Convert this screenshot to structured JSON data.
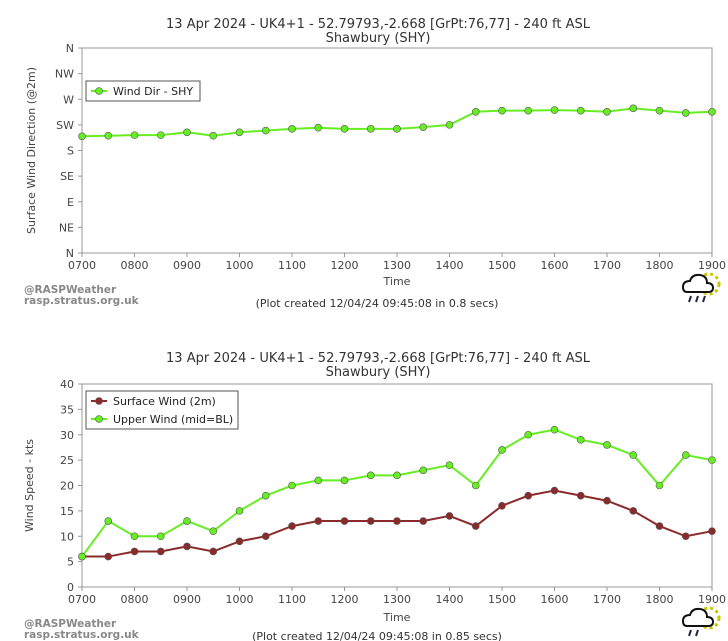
{
  "charts": [
    {
      "title_line1": "13 Apr 2024 - UK4+1 - 52.79793,-2.668 [GrPt:76,77]  - 240 ft ASL",
      "title_line2": "Shawbury (SHY)",
      "credit_line1": "@RASPWeather",
      "credit_line2": "rasp.stratus.org.uk",
      "created": "(Plot created 12/04/24 09:45:08 in 0.8 secs)",
      "icon": "rain-cloud-sun-logo-icon"
    },
    {
      "title_line1": "13 Apr 2024 - UK4+1 - 52.79793,-2.668 [GrPt:76,77]  - 240 ft ASL",
      "title_line2": "Shawbury (SHY)",
      "credit_line1": "@RASPWeather",
      "credit_line2": "rasp.stratus.org.uk",
      "created": "(Plot created 12/04/24 09:45:08 in 0.85 secs)",
      "icon": "rain-cloud-sun-logo-icon"
    }
  ],
  "chart_data": [
    {
      "type": "line",
      "xlabel": "Time",
      "ylabel": "Surface Wind Direction (@2m)",
      "x": [
        "0700",
        "0730",
        "0800",
        "0830",
        "0900",
        "0930",
        "1000",
        "1030",
        "1100",
        "1130",
        "1200",
        "1230",
        "1300",
        "1330",
        "1400",
        "1430",
        "1500",
        "1530",
        "1600",
        "1630",
        "1700",
        "1730",
        "1800",
        "1830",
        "1900"
      ],
      "x_ticks": [
        "0700",
        "0800",
        "0900",
        "1000",
        "1100",
        "1200",
        "1300",
        "1400",
        "1500",
        "1600",
        "1700",
        "1800",
        "1900"
      ],
      "y_ticks": [
        "N",
        "NE",
        "E",
        "SE",
        "S",
        "SW",
        "W",
        "NW",
        "N"
      ],
      "ylim": [
        0,
        360
      ],
      "grid": false,
      "legend_placement": "top-left",
      "series": [
        {
          "name": "Wind Dir - SHY",
          "color": "#66ee22",
          "values": [
            205,
            206,
            207,
            207,
            212,
            206,
            212,
            215,
            218,
            220,
            218,
            218,
            218,
            221,
            225,
            248,
            250,
            250,
            251,
            250,
            248,
            254,
            250,
            246,
            248
          ]
        }
      ]
    },
    {
      "type": "line",
      "xlabel": "Time",
      "ylabel": "Wind Speed - kts",
      "x": [
        "0700",
        "0730",
        "0800",
        "0830",
        "0900",
        "0930",
        "1000",
        "1030",
        "1100",
        "1130",
        "1200",
        "1230",
        "1300",
        "1330",
        "1400",
        "1430",
        "1500",
        "1530",
        "1600",
        "1630",
        "1700",
        "1730",
        "1800",
        "1830",
        "1900"
      ],
      "x_ticks": [
        "0700",
        "0800",
        "0900",
        "1000",
        "1100",
        "1200",
        "1300",
        "1400",
        "1500",
        "1600",
        "1700",
        "1800",
        "1900"
      ],
      "y_ticks": [
        "0",
        "5",
        "10",
        "15",
        "20",
        "25",
        "30",
        "35",
        "40"
      ],
      "ylim": [
        0,
        40
      ],
      "grid": false,
      "legend_placement": "top-left",
      "series": [
        {
          "name": "Surface Wind (2m)",
          "color": "#8b2a2a",
          "values": [
            6,
            6,
            7,
            7,
            8,
            7,
            9,
            10,
            12,
            13,
            13,
            13,
            13,
            13,
            14,
            12,
            16,
            18,
            19,
            18,
            17,
            15,
            12,
            10,
            11
          ]
        },
        {
          "name": "Upper Wind (mid=BL)",
          "color": "#66ee22",
          "values": [
            6,
            13,
            10,
            10,
            13,
            11,
            15,
            18,
            20,
            21,
            21,
            22,
            22,
            23,
            24,
            20,
            27,
            30,
            31,
            29,
            28,
            26,
            20,
            26,
            25
          ]
        }
      ]
    }
  ]
}
